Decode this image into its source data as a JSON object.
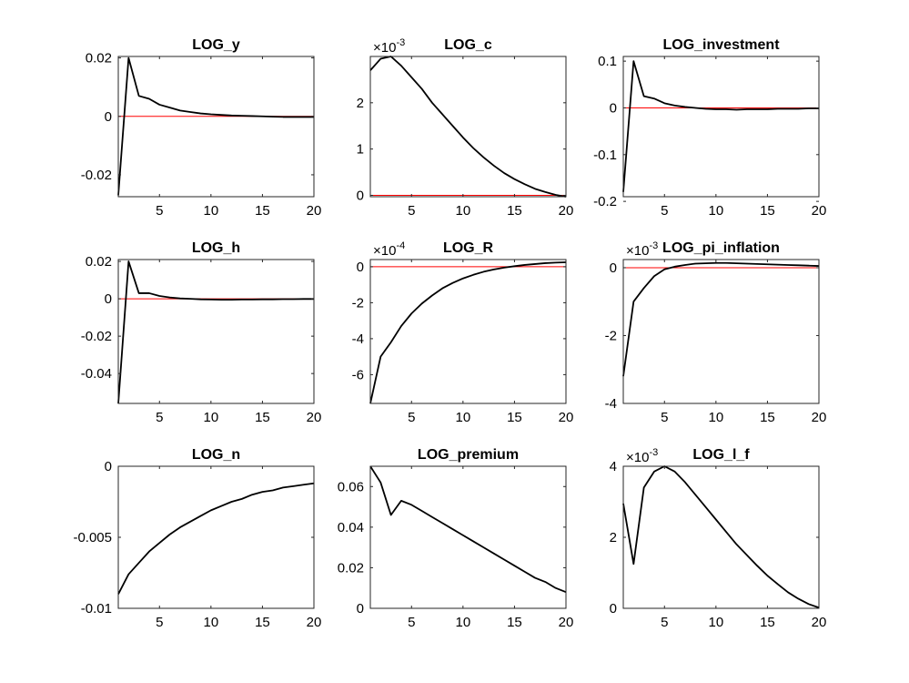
{
  "chart_data": [
    {
      "type": "line",
      "title": "LOG_y",
      "x": [
        1,
        2,
        3,
        4,
        5,
        6,
        7,
        8,
        9,
        10,
        11,
        12,
        13,
        14,
        15,
        16,
        17,
        18,
        19,
        20
      ],
      "series": [
        {
          "color": "#000000",
          "values": [
            -0.027,
            0.02,
            0.007,
            0.006,
            0.004,
            0.003,
            0.002,
            0.0015,
            0.001,
            0.0007,
            0.0005,
            0.0003,
            0.0002,
            0.0001,
            0,
            -0.0001,
            -0.0002,
            -0.0002,
            -0.0002,
            -0.0002
          ]
        }
      ],
      "xlim": [
        1,
        20
      ],
      "xticks": [
        5,
        10,
        15,
        20
      ],
      "ylim": [
        -0.0275,
        0.0205
      ],
      "yticks": [
        -0.02,
        0,
        0.02
      ],
      "hline": 0,
      "hline_color": "#ff0000"
    },
    {
      "type": "line",
      "title": "LOG_c",
      "x": [
        1,
        2,
        3,
        4,
        5,
        6,
        7,
        8,
        9,
        10,
        11,
        12,
        13,
        14,
        15,
        16,
        17,
        18,
        19,
        20
      ],
      "series": [
        {
          "color": "#000000",
          "values": [
            2.7,
            2.95,
            3.0,
            2.8,
            2.55,
            2.3,
            2.0,
            1.75,
            1.5,
            1.25,
            1.02,
            0.82,
            0.64,
            0.48,
            0.35,
            0.24,
            0.14,
            0.07,
            0.01,
            -0.03
          ]
        }
      ],
      "xlim": [
        1,
        20
      ],
      "xticks": [
        5,
        10,
        15,
        20
      ],
      "ylim": [
        -0.03,
        3.0
      ],
      "yticks": [
        0,
        1,
        2
      ],
      "y_multiplier": {
        "base": "×10",
        "exponent": -3
      },
      "hline": 0,
      "hline_color": "#ff0000"
    },
    {
      "type": "line",
      "title": "LOG_investment",
      "x": [
        1,
        2,
        3,
        4,
        5,
        6,
        7,
        8,
        9,
        10,
        11,
        12,
        13,
        14,
        15,
        16,
        17,
        18,
        19,
        20
      ],
      "series": [
        {
          "color": "#000000",
          "values": [
            -0.18,
            0.1,
            0.025,
            0.02,
            0.01,
            0.005,
            0.002,
            0,
            -0.002,
            -0.003,
            -0.003,
            -0.004,
            -0.003,
            -0.003,
            -0.003,
            -0.002,
            -0.002,
            -0.002,
            -0.001,
            -0.001
          ]
        }
      ],
      "xlim": [
        1,
        20
      ],
      "xticks": [
        5,
        10,
        15,
        20
      ],
      "ylim": [
        -0.19,
        0.11
      ],
      "yticks": [
        -0.2,
        -0.1,
        0,
        0.1
      ],
      "hline": 0,
      "hline_color": "#ff0000"
    },
    {
      "type": "line",
      "title": "LOG_h",
      "x": [
        1,
        2,
        3,
        4,
        5,
        6,
        7,
        8,
        9,
        10,
        11,
        12,
        13,
        14,
        15,
        16,
        17,
        18,
        19,
        20
      ],
      "series": [
        {
          "color": "#000000",
          "values": [
            -0.056,
            0.02,
            0.003,
            0.003,
            0.0015,
            0.0007,
            0.0002,
            0,
            -0.0003,
            -0.0004,
            -0.0005,
            -0.0005,
            -0.0004,
            -0.0004,
            -0.0003,
            -0.0003,
            -0.0002,
            -0.0002,
            -0.0001,
            -0.0001
          ]
        }
      ],
      "xlim": [
        1,
        20
      ],
      "xticks": [
        5,
        10,
        15,
        20
      ],
      "ylim": [
        -0.056,
        0.021
      ],
      "yticks": [
        -0.04,
        -0.02,
        0,
        0.02
      ],
      "hline": 0,
      "hline_color": "#ff0000"
    },
    {
      "type": "line",
      "title": "LOG_R",
      "x": [
        1,
        2,
        3,
        4,
        5,
        6,
        7,
        8,
        9,
        10,
        11,
        12,
        13,
        14,
        15,
        16,
        17,
        18,
        19,
        20
      ],
      "series": [
        {
          "color": "#000000",
          "values": [
            -7.6,
            -5.0,
            -4.2,
            -3.3,
            -2.6,
            -2.05,
            -1.6,
            -1.2,
            -0.9,
            -0.65,
            -0.45,
            -0.28,
            -0.15,
            -0.05,
            0.03,
            0.1,
            0.15,
            0.2,
            0.23,
            0.25
          ]
        }
      ],
      "xlim": [
        1,
        20
      ],
      "xticks": [
        5,
        10,
        15,
        20
      ],
      "ylim": [
        -7.6,
        0.4
      ],
      "yticks": [
        -6,
        -4,
        -2,
        0
      ],
      "y_multiplier": {
        "base": "×10",
        "exponent": -4
      },
      "hline": 0,
      "hline_color": "#ff0000"
    },
    {
      "type": "line",
      "title": "LOG_pi_inflation",
      "x": [
        1,
        2,
        3,
        4,
        5,
        6,
        7,
        8,
        9,
        10,
        11,
        12,
        13,
        14,
        15,
        16,
        17,
        18,
        19,
        20
      ],
      "series": [
        {
          "color": "#000000",
          "values": [
            -3.2,
            -1.0,
            -0.6,
            -0.25,
            -0.05,
            0.03,
            0.08,
            0.12,
            0.13,
            0.14,
            0.14,
            0.13,
            0.12,
            0.11,
            0.1,
            0.09,
            0.08,
            0.07,
            0.06,
            0.05
          ]
        }
      ],
      "xlim": [
        1,
        20
      ],
      "xticks": [
        5,
        10,
        15,
        20
      ],
      "ylim": [
        -4,
        0.24
      ],
      "yticks": [
        -4,
        -2,
        0
      ],
      "y_multiplier": {
        "base": "×10",
        "exponent": -3
      },
      "hline": 0,
      "hline_color": "#ff0000"
    },
    {
      "type": "line",
      "title": "LOG_n",
      "x": [
        1,
        2,
        3,
        4,
        5,
        6,
        7,
        8,
        9,
        10,
        11,
        12,
        13,
        14,
        15,
        16,
        17,
        18,
        19,
        20
      ],
      "series": [
        {
          "color": "#000000",
          "values": [
            -0.009,
            -0.0076,
            -0.0068,
            -0.006,
            -0.0054,
            -0.0048,
            -0.0043,
            -0.0039,
            -0.0035,
            -0.0031,
            -0.0028,
            -0.0025,
            -0.0023,
            -0.002,
            -0.0018,
            -0.0017,
            -0.0015,
            -0.0014,
            -0.0013,
            -0.0012
          ]
        }
      ],
      "xlim": [
        1,
        20
      ],
      "xticks": [
        5,
        10,
        15,
        20
      ],
      "ylim": [
        -0.01,
        0
      ],
      "yticks": [
        -0.01,
        -0.005,
        0
      ],
      "hline": 0,
      "hline_color": "#ff0000"
    },
    {
      "type": "line",
      "title": "LOG_premium",
      "x": [
        1,
        2,
        3,
        4,
        5,
        6,
        7,
        8,
        9,
        10,
        11,
        12,
        13,
        14,
        15,
        16,
        17,
        18,
        19,
        20
      ],
      "series": [
        {
          "color": "#000000",
          "values": [
            0.07,
            0.062,
            0.046,
            0.053,
            0.051,
            0.048,
            0.045,
            0.042,
            0.039,
            0.036,
            0.033,
            0.03,
            0.027,
            0.024,
            0.021,
            0.018,
            0.015,
            0.013,
            0.01,
            0.008
          ]
        }
      ],
      "xlim": [
        1,
        20
      ],
      "xticks": [
        5,
        10,
        15,
        20
      ],
      "ylim": [
        0,
        0.07
      ],
      "yticks": [
        0,
        0.02,
        0.04,
        0.06
      ],
      "hline": 0,
      "hline_color": "#ff0000"
    },
    {
      "type": "line",
      "title": "LOG_l_f",
      "x": [
        1,
        2,
        3,
        4,
        5,
        6,
        7,
        8,
        9,
        10,
        11,
        12,
        13,
        14,
        15,
        16,
        17,
        18,
        19,
        20
      ],
      "series": [
        {
          "color": "#000000",
          "values": [
            2.95,
            1.25,
            3.4,
            3.85,
            4.0,
            3.85,
            3.55,
            3.2,
            2.85,
            2.5,
            2.15,
            1.8,
            1.5,
            1.2,
            0.92,
            0.68,
            0.45,
            0.27,
            0.12,
            0.02
          ]
        }
      ],
      "xlim": [
        1,
        20
      ],
      "xticks": [
        5,
        10,
        15,
        20
      ],
      "ylim": [
        0,
        4
      ],
      "yticks": [
        0,
        2,
        4
      ],
      "y_multiplier": {
        "base": "×10",
        "exponent": -3
      },
      "hline": 0,
      "hline_color": "#ff0000"
    }
  ]
}
